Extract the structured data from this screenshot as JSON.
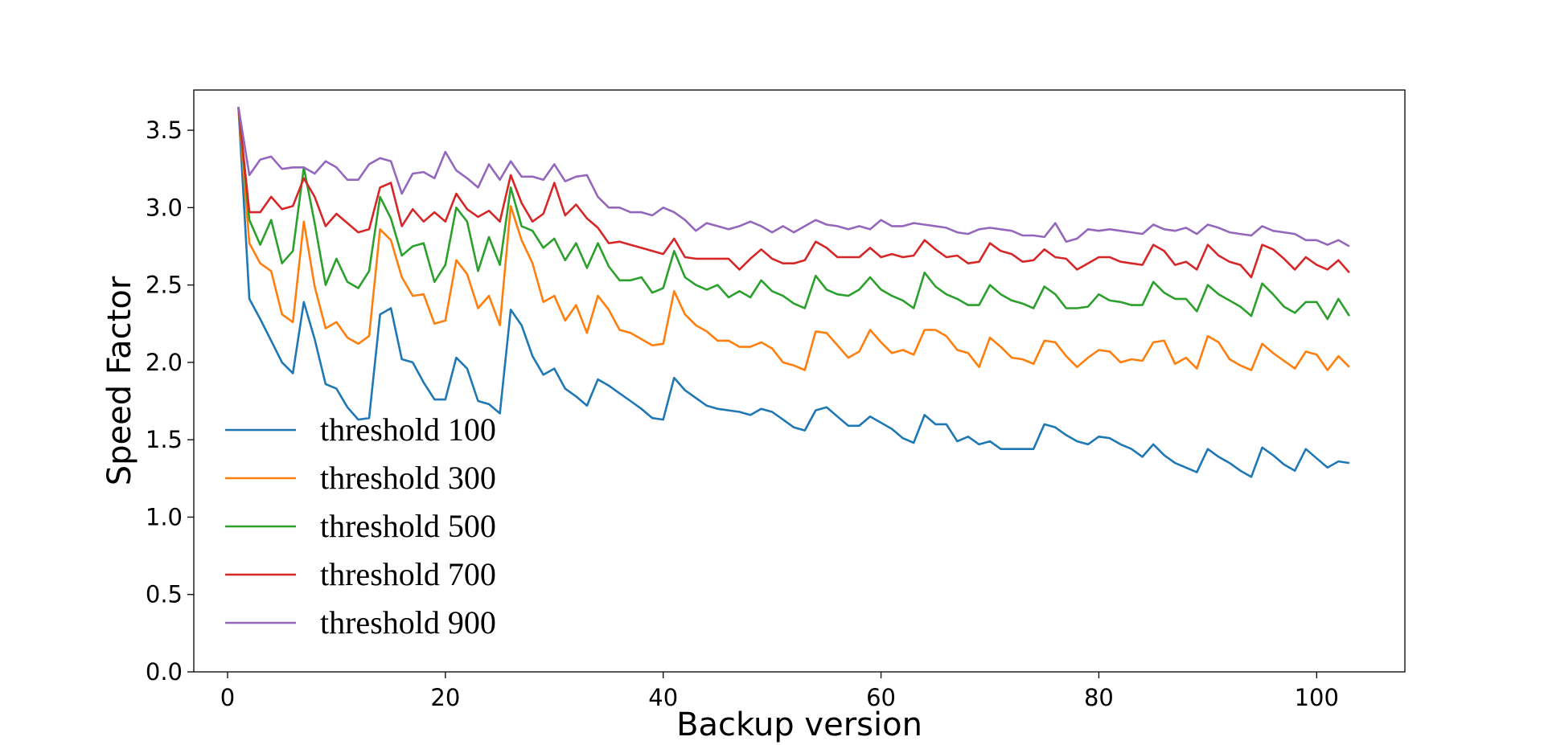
{
  "chart_data": {
    "type": "line",
    "title": "",
    "xlabel": "Backup version",
    "ylabel": "Speed Factor",
    "xlim": [
      -3.1,
      108.1
    ],
    "ylim": [
      0.0,
      3.76
    ],
    "xticks": [
      0,
      20,
      40,
      60,
      80,
      100
    ],
    "yticks": [
      0.0,
      0.5,
      1.0,
      1.5,
      2.0,
      2.5,
      3.0,
      3.5
    ],
    "xtick_labels": [
      "0",
      "20",
      "40",
      "60",
      "80",
      "100"
    ],
    "ytick_labels": [
      "0.0",
      "0.5",
      "1.0",
      "1.5",
      "2.0",
      "2.5",
      "3.0",
      "3.5"
    ],
    "grid": false,
    "legend_position": "lower-left",
    "x_start": 1,
    "x_end": 103,
    "series": [
      {
        "name": "threshold 100",
        "color": "#1f77b4",
        "values": [
          3.65,
          2.41,
          2.28,
          2.14,
          2.0,
          1.93,
          2.39,
          2.15,
          1.86,
          1.83,
          1.71,
          1.63,
          1.64,
          2.31,
          2.35,
          2.02,
          2.0,
          1.87,
          1.76,
          1.76,
          2.03,
          1.96,
          1.75,
          1.73,
          1.67,
          2.34,
          2.24,
          2.04,
          1.92,
          1.96,
          1.83,
          1.78,
          1.72,
          1.89,
          1.85,
          1.8,
          1.75,
          1.7,
          1.64,
          1.63,
          1.9,
          1.82,
          1.77,
          1.72,
          1.7,
          1.69,
          1.68,
          1.66,
          1.7,
          1.68,
          1.63,
          1.58,
          1.56,
          1.69,
          1.71,
          1.65,
          1.59,
          1.59,
          1.65,
          1.61,
          1.57,
          1.51,
          1.48,
          1.66,
          1.6,
          1.6,
          1.49,
          1.52,
          1.47,
          1.49,
          1.44,
          1.44,
          1.44,
          1.44,
          1.6,
          1.58,
          1.53,
          1.49,
          1.47,
          1.52,
          1.51,
          1.47,
          1.44,
          1.39,
          1.47,
          1.4,
          1.35,
          1.32,
          1.29,
          1.44,
          1.39,
          1.35,
          1.3,
          1.26,
          1.45,
          1.4,
          1.34,
          1.3,
          1.44,
          1.38,
          1.32,
          1.36,
          1.35
        ]
      },
      {
        "name": "threshold 300",
        "color": "#ff7f0e",
        "values": [
          3.65,
          2.77,
          2.64,
          2.59,
          2.31,
          2.26,
          2.91,
          2.49,
          2.22,
          2.26,
          2.16,
          2.12,
          2.17,
          2.86,
          2.79,
          2.55,
          2.43,
          2.44,
          2.25,
          2.27,
          2.66,
          2.57,
          2.35,
          2.43,
          2.24,
          3.01,
          2.79,
          2.64,
          2.39,
          2.43,
          2.27,
          2.37,
          2.19,
          2.43,
          2.34,
          2.21,
          2.19,
          2.15,
          2.11,
          2.12,
          2.46,
          2.31,
          2.24,
          2.2,
          2.14,
          2.14,
          2.1,
          2.1,
          2.13,
          2.09,
          2.0,
          1.98,
          1.95,
          2.2,
          2.19,
          2.11,
          2.03,
          2.07,
          2.21,
          2.13,
          2.06,
          2.08,
          2.05,
          2.21,
          2.21,
          2.17,
          2.08,
          2.06,
          1.97,
          2.16,
          2.1,
          2.03,
          2.02,
          1.99,
          2.14,
          2.13,
          2.04,
          1.97,
          2.03,
          2.08,
          2.07,
          2.0,
          2.02,
          2.01,
          2.13,
          2.14,
          1.99,
          2.03,
          1.96,
          2.17,
          2.13,
          2.02,
          1.98,
          1.95,
          2.12,
          2.06,
          2.01,
          1.96,
          2.07,
          2.05,
          1.95,
          2.04,
          1.97
        ]
      },
      {
        "name": "threshold 500",
        "color": "#2ca02c",
        "values": [
          3.65,
          2.92,
          2.76,
          2.92,
          2.64,
          2.72,
          3.26,
          2.9,
          2.5,
          2.67,
          2.52,
          2.48,
          2.59,
          3.07,
          2.93,
          2.69,
          2.75,
          2.77,
          2.52,
          2.63,
          3.0,
          2.91,
          2.59,
          2.81,
          2.63,
          3.13,
          2.88,
          2.85,
          2.74,
          2.8,
          2.66,
          2.77,
          2.61,
          2.77,
          2.62,
          2.53,
          2.53,
          2.55,
          2.45,
          2.48,
          2.72,
          2.55,
          2.5,
          2.47,
          2.5,
          2.42,
          2.46,
          2.42,
          2.53,
          2.46,
          2.43,
          2.38,
          2.35,
          2.56,
          2.47,
          2.44,
          2.43,
          2.47,
          2.55,
          2.47,
          2.43,
          2.4,
          2.35,
          2.58,
          2.49,
          2.44,
          2.41,
          2.37,
          2.37,
          2.5,
          2.44,
          2.4,
          2.38,
          2.35,
          2.49,
          2.44,
          2.35,
          2.35,
          2.36,
          2.44,
          2.4,
          2.39,
          2.37,
          2.37,
          2.52,
          2.45,
          2.41,
          2.41,
          2.33,
          2.5,
          2.44,
          2.4,
          2.36,
          2.3,
          2.51,
          2.44,
          2.36,
          2.32,
          2.39,
          2.39,
          2.28,
          2.41,
          2.3
        ]
      },
      {
        "name": "threshold 700",
        "color": "#d62728",
        "values": [
          3.65,
          2.97,
          2.97,
          3.07,
          2.99,
          3.01,
          3.19,
          3.07,
          2.88,
          2.96,
          2.9,
          2.84,
          2.86,
          3.13,
          3.16,
          2.88,
          2.99,
          2.91,
          2.97,
          2.91,
          3.09,
          2.99,
          2.94,
          2.98,
          2.91,
          3.21,
          3.03,
          2.91,
          2.96,
          3.16,
          2.95,
          3.02,
          2.93,
          2.87,
          2.77,
          2.78,
          2.76,
          2.74,
          2.72,
          2.7,
          2.8,
          2.68,
          2.67,
          2.67,
          2.67,
          2.67,
          2.6,
          2.67,
          2.73,
          2.67,
          2.64,
          2.64,
          2.66,
          2.78,
          2.74,
          2.68,
          2.68,
          2.68,
          2.74,
          2.68,
          2.7,
          2.68,
          2.69,
          2.79,
          2.73,
          2.68,
          2.69,
          2.64,
          2.65,
          2.77,
          2.72,
          2.7,
          2.65,
          2.66,
          2.73,
          2.68,
          2.67,
          2.6,
          2.64,
          2.68,
          2.68,
          2.65,
          2.64,
          2.63,
          2.76,
          2.72,
          2.63,
          2.65,
          2.6,
          2.76,
          2.69,
          2.65,
          2.63,
          2.55,
          2.76,
          2.73,
          2.67,
          2.6,
          2.68,
          2.63,
          2.6,
          2.66,
          2.58
        ]
      },
      {
        "name": "threshold 900",
        "color": "#9467bd",
        "values": [
          3.65,
          3.21,
          3.31,
          3.33,
          3.25,
          3.26,
          3.26,
          3.22,
          3.3,
          3.26,
          3.18,
          3.18,
          3.28,
          3.32,
          3.3,
          3.09,
          3.22,
          3.23,
          3.19,
          3.36,
          3.24,
          3.19,
          3.13,
          3.28,
          3.18,
          3.3,
          3.2,
          3.2,
          3.18,
          3.28,
          3.17,
          3.2,
          3.21,
          3.07,
          3.0,
          3.0,
          2.97,
          2.97,
          2.95,
          3.0,
          2.97,
          2.92,
          2.85,
          2.9,
          2.88,
          2.86,
          2.88,
          2.91,
          2.88,
          2.84,
          2.88,
          2.84,
          2.88,
          2.92,
          2.89,
          2.88,
          2.86,
          2.88,
          2.86,
          2.92,
          2.88,
          2.88,
          2.9,
          2.89,
          2.88,
          2.87,
          2.84,
          2.83,
          2.86,
          2.87,
          2.86,
          2.85,
          2.82,
          2.82,
          2.81,
          2.9,
          2.78,
          2.8,
          2.86,
          2.85,
          2.86,
          2.85,
          2.84,
          2.83,
          2.89,
          2.86,
          2.85,
          2.87,
          2.83,
          2.89,
          2.87,
          2.84,
          2.83,
          2.82,
          2.88,
          2.85,
          2.84,
          2.83,
          2.79,
          2.79,
          2.76,
          2.79,
          2.75
        ]
      }
    ]
  }
}
